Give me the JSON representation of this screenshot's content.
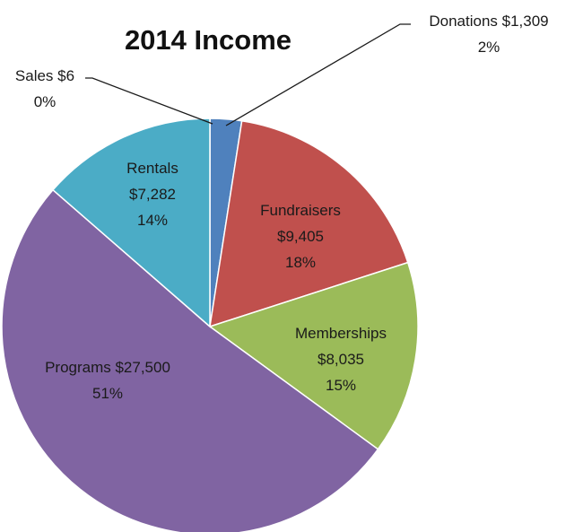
{
  "chart_data": {
    "type": "pie",
    "title": "2014 Income",
    "slices": [
      {
        "name": "Sales",
        "value_label": "$6",
        "pct_label": "0%",
        "value": 6,
        "color": "#4F81BD"
      },
      {
        "name": "Donations",
        "value_label": "$1,309",
        "pct_label": "2%",
        "value": 1309,
        "color": "#4F81BD"
      },
      {
        "name": "Fundraisers",
        "value_label": "$9,405",
        "pct_label": "18%",
        "value": 9405,
        "color": "#C0504D"
      },
      {
        "name": "Memberships",
        "value_label": "$8,035",
        "pct_label": "15%",
        "value": 8035,
        "color": "#9BBB59"
      },
      {
        "name": "Programs",
        "value_label": "$27,500",
        "pct_label": "51%",
        "value": 27500,
        "color": "#8064A2"
      },
      {
        "name": "Rentals",
        "value_label": "$7,282",
        "pct_label": "14%",
        "value": 7282,
        "color": "#4BACC6"
      }
    ],
    "start_angle_deg": 0,
    "direction": "clockwise"
  }
}
